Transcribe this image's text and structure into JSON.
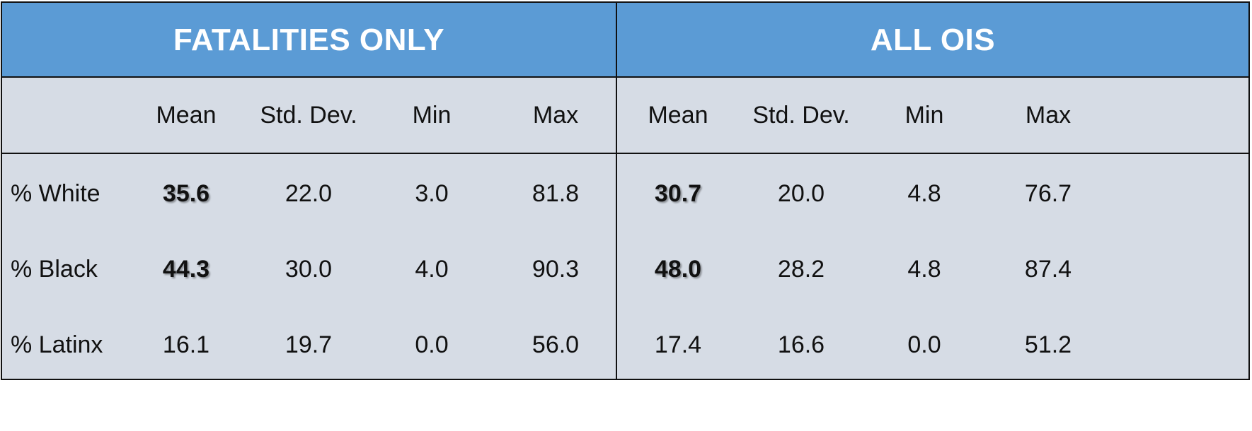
{
  "chart_data": {
    "type": "table",
    "groups": [
      "FATALITIES ONLY",
      "ALL OIS"
    ],
    "columns": [
      "Mean",
      "Std. Dev.",
      "Min",
      "Max"
    ],
    "rows": [
      {
        "label": "% White",
        "fatalities": [
          "35.6",
          "22.0",
          "3.0",
          "81.8"
        ],
        "all_ois": [
          "30.7",
          "20.0",
          "4.8",
          "76.7"
        ],
        "highlight_mean": true
      },
      {
        "label": "% Black",
        "fatalities": [
          "44.3",
          "30.0",
          "4.0",
          "90.3"
        ],
        "all_ois": [
          "48.0",
          "28.2",
          "4.8",
          "87.4"
        ],
        "highlight_mean": true
      },
      {
        "label": "% Latinx",
        "fatalities": [
          "16.1",
          "19.7",
          "0.0",
          "56.0"
        ],
        "all_ois": [
          "17.4",
          "16.6",
          "0.0",
          "51.2"
        ],
        "highlight_mean": false
      }
    ]
  },
  "colors": {
    "header_bg": "#5b9bd5",
    "body_bg": "#d6dce5",
    "border": "#111111",
    "header_text": "#ffffff",
    "body_text": "#111111"
  }
}
